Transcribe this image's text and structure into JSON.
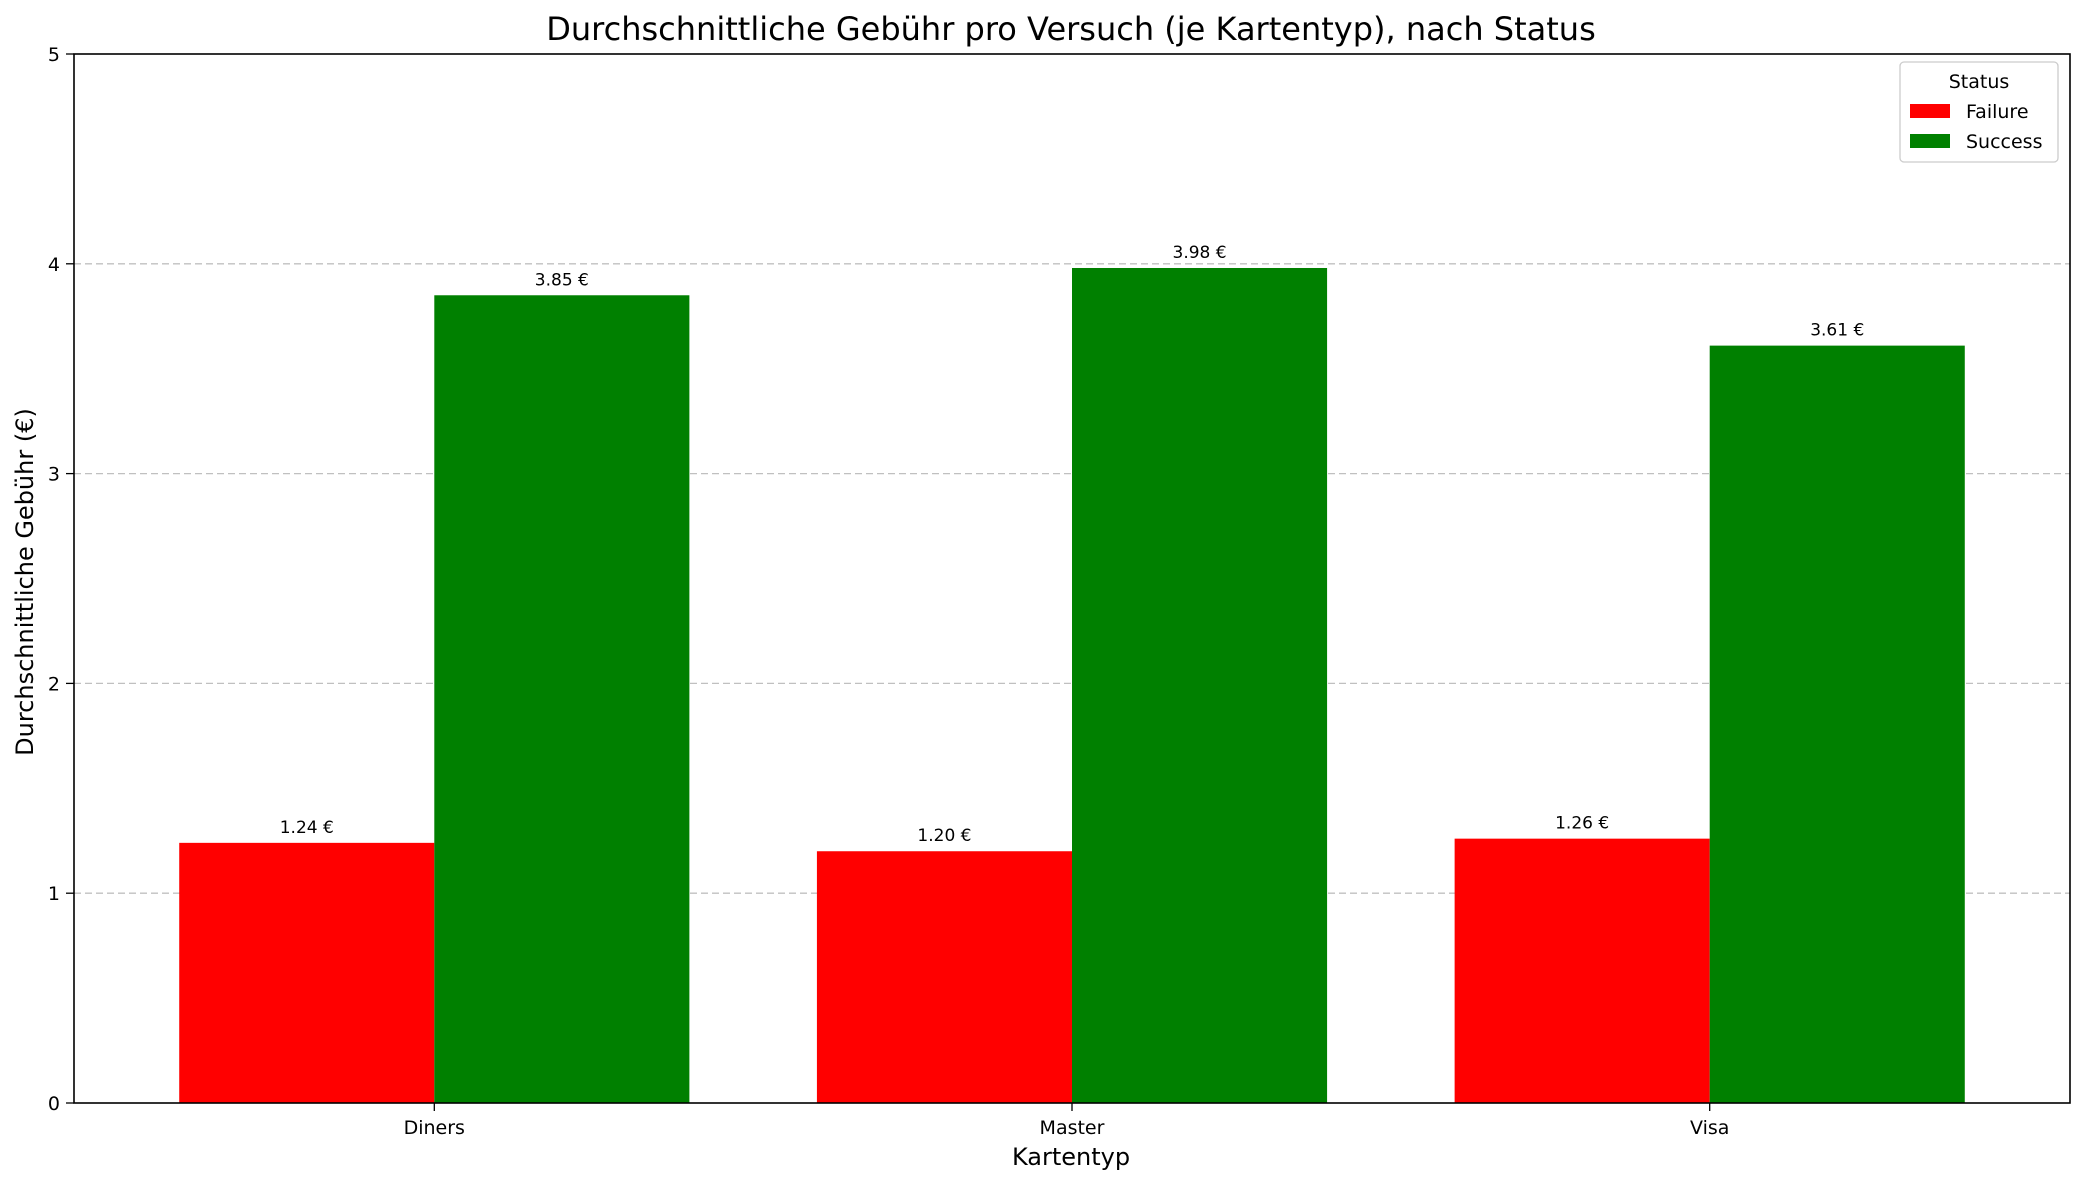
{
  "chart_data": {
    "type": "bar",
    "title": "Durchschnittliche Gebühr pro Versuch (je Kartentyp), nach Status",
    "xlabel": "Kartentyp",
    "ylabel": "Durchschnittliche Gebühr (€)",
    "categories": [
      "Diners",
      "Master",
      "Visa"
    ],
    "series": [
      {
        "name": "Failure",
        "color": "#ff0000",
        "values": [
          1.24,
          1.2,
          1.26
        ],
        "labels": [
          "1.24 €",
          "1.20 €",
          "1.26 €"
        ]
      },
      {
        "name": "Success",
        "color": "#008000",
        "values": [
          3.85,
          3.98,
          3.61
        ],
        "labels": [
          "3.85 €",
          "3.98 €",
          "3.61 €"
        ]
      }
    ],
    "ylim": [
      0,
      5
    ],
    "yticks": [
      "0",
      "1",
      "2",
      "3",
      "4",
      "5"
    ],
    "grid": "y-dashed",
    "legend": {
      "title": "Status",
      "position": "top-right"
    }
  }
}
